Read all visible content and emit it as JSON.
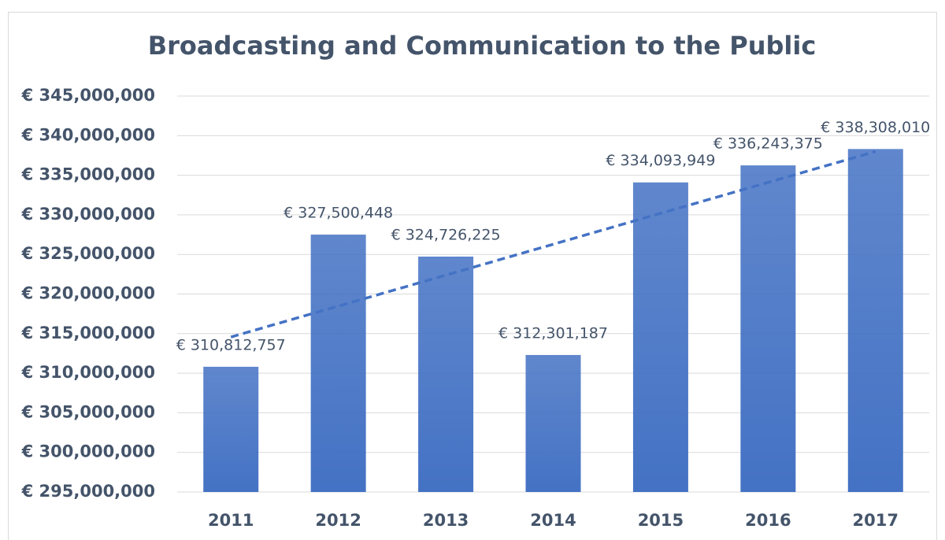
{
  "chart_data": {
    "type": "bar",
    "title": "Broadcasting and Communication to the Public",
    "categories": [
      "2011",
      "2012",
      "2013",
      "2014",
      "2015",
      "2016",
      "2017"
    ],
    "values": [
      310812757,
      327500448,
      324726225,
      312301187,
      334093949,
      336243375,
      338308010
    ],
    "value_labels": [
      "€ 310,812,757",
      "€ 327,500,448",
      "€ 324,726,225",
      "€ 312,301,187",
      "€ 334,093,949",
      "€ 336,243,375",
      "€ 338,308,010"
    ],
    "color": "#4472c4",
    "ylim": [
      295000000,
      345000000
    ],
    "yticks": [
      {
        "value": 295000000,
        "label": "€ 295,000,000"
      },
      {
        "value": 300000000,
        "label": "€ 300,000,000"
      },
      {
        "value": 305000000,
        "label": "€ 305,000,000"
      },
      {
        "value": 310000000,
        "label": "€ 310,000,000"
      },
      {
        "value": 315000000,
        "label": "€ 315,000,000"
      },
      {
        "value": 320000000,
        "label": "€ 320,000,000"
      },
      {
        "value": 325000000,
        "label": "€ 325,000,000"
      },
      {
        "value": 330000000,
        "label": "€ 330,000,000"
      },
      {
        "value": 335000000,
        "label": "€ 335,000,000"
      },
      {
        "value": 340000000,
        "label": "€ 340,000,000"
      },
      {
        "value": 345000000,
        "label": "€ 345,000,000"
      }
    ],
    "grid": true,
    "trendline": "linear"
  }
}
